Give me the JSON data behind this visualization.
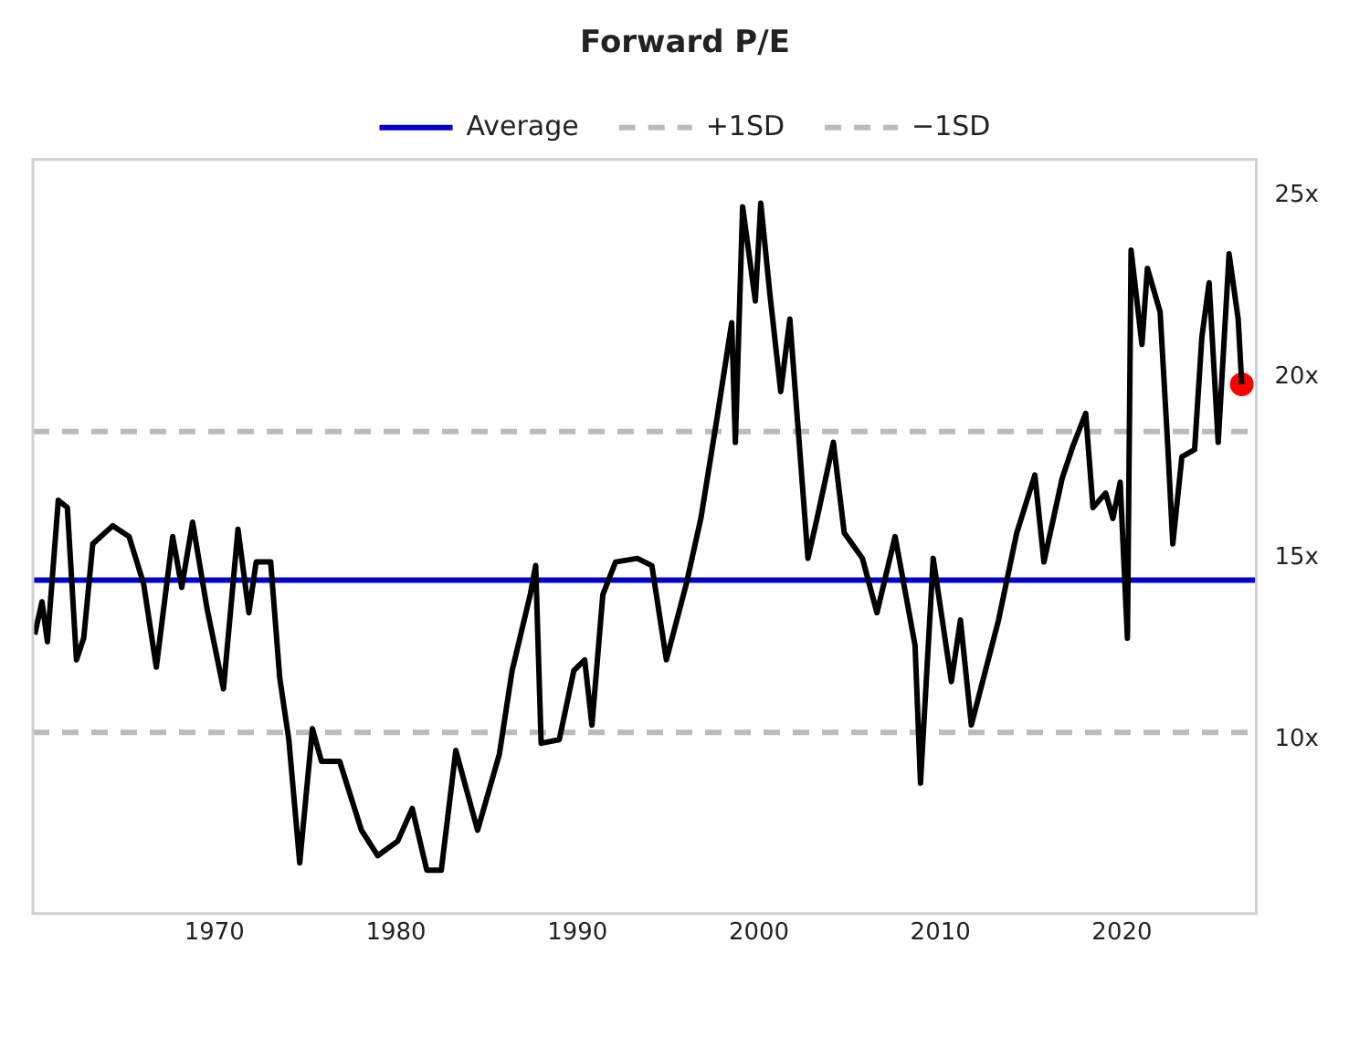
{
  "chart_data": {
    "type": "line",
    "title": "Forward P/E",
    "x": [
      1960.1,
      1960.5,
      1960.8,
      1961.4,
      1961.9,
      1962.4,
      1962.8,
      1963.3,
      1964.4,
      1965.3,
      1966.1,
      1966.8,
      1967.7,
      1968.2,
      1968.8,
      1969.6,
      1970.5,
      1971.3,
      1971.9,
      1972.3,
      1973.1,
      1973.6,
      1974.1,
      1974.7,
      1975.4,
      1975.9,
      1976.9,
      1978.1,
      1979.0,
      1980.1,
      1980.9,
      1981.7,
      1982.5,
      1983.3,
      1984.5,
      1985.7,
      1986.4,
      1987.4,
      1987.7,
      1988.0,
      1989.0,
      1989.8,
      1990.4,
      1990.8,
      1991.4,
      1992.1,
      1993.3,
      1994.1,
      1994.9,
      1996.0,
      1996.8,
      1997.7,
      1998.5,
      1998.7,
      1999.1,
      1999.8,
      2000.1,
      2000.6,
      2001.2,
      2001.7,
      2002.7,
      2003.2,
      2004.1,
      2004.7,
      2005.7,
      2006.5,
      2007.5,
      2008.6,
      2008.9,
      2009.6,
      2010.6,
      2011.1,
      2011.7,
      2013.2,
      2014.2,
      2015.2,
      2015.7,
      2016.7,
      2017.3,
      2018.0,
      2018.4,
      2019.1,
      2019.5,
      2019.9,
      2020.3,
      2020.5,
      2021.1,
      2021.4,
      2022.1,
      2022.5,
      2022.8,
      2023.3,
      2024.0,
      2024.4,
      2024.8,
      2025.3,
      2025.9,
      2026.4,
      2026.6
    ],
    "series": [
      {
        "color": "#000000",
        "values": [
          12.9,
          13.8,
          12.7,
          16.6,
          16.4,
          12.2,
          12.8,
          15.4,
          15.9,
          15.6,
          14.3,
          12.0,
          15.6,
          14.2,
          16.0,
          13.6,
          11.4,
          15.8,
          13.5,
          14.9,
          14.9,
          11.7,
          10.0,
          6.6,
          10.3,
          9.4,
          9.4,
          7.5,
          6.8,
          7.2,
          8.1,
          6.4,
          6.4,
          9.7,
          7.5,
          9.6,
          11.9,
          14.0,
          14.8,
          9.9,
          10.0,
          11.9,
          12.2,
          10.4,
          14.0,
          14.9,
          15.0,
          14.8,
          12.2,
          14.3,
          16.1,
          18.9,
          21.5,
          18.2,
          24.7,
          22.1,
          24.8,
          22.3,
          19.6,
          21.6,
          15.0,
          16.1,
          18.2,
          15.7,
          15.0,
          13.5,
          15.6,
          12.6,
          8.8,
          15.0,
          11.6,
          13.3,
          10.4,
          13.3,
          15.7,
          17.3,
          14.9,
          17.2,
          18.1,
          19.0,
          16.4,
          16.8,
          16.1,
          17.1,
          12.8,
          23.5,
          20.9,
          23.0,
          21.8,
          18.3,
          15.4,
          17.8,
          18.0,
          21.1,
          22.6,
          18.2,
          23.4,
          21.6,
          19.8
        ]
      },
      {
        "type": "scatter",
        "color": "#ff0000",
        "marker": "circle",
        "x": [
          2026.6
        ],
        "values": [
          19.8
        ]
      }
    ],
    "xlim": [
      1960.0,
      2027.4
    ],
    "xticks": [
      1970,
      1980,
      1990,
      2000,
      2010,
      2020
    ],
    "ylim": [
      5.2,
      26
    ],
    "yticks": [
      {
        "value": 10,
        "label": "10x"
      },
      {
        "value": 15,
        "label": "15x"
      },
      {
        "value": 20,
        "label": "20x"
      },
      {
        "value": 25,
        "label": "25x"
      }
    ],
    "ref_lines": [
      {
        "axis": "y",
        "value": 14.4,
        "label": "Average",
        "color": "#0000cc",
        "line_style": "solid"
      },
      {
        "axis": "y",
        "value": 18.5,
        "label": "+1SD",
        "color": "#bbbbbb",
        "line_style": "dashed"
      },
      {
        "axis": "y",
        "value": 10.2,
        "label": "−1SD",
        "color": "#bbbbbb",
        "line_style": "dashed"
      }
    ],
    "legend": "top",
    "grid": false,
    "marker": "none",
    "line_style": "solid"
  }
}
